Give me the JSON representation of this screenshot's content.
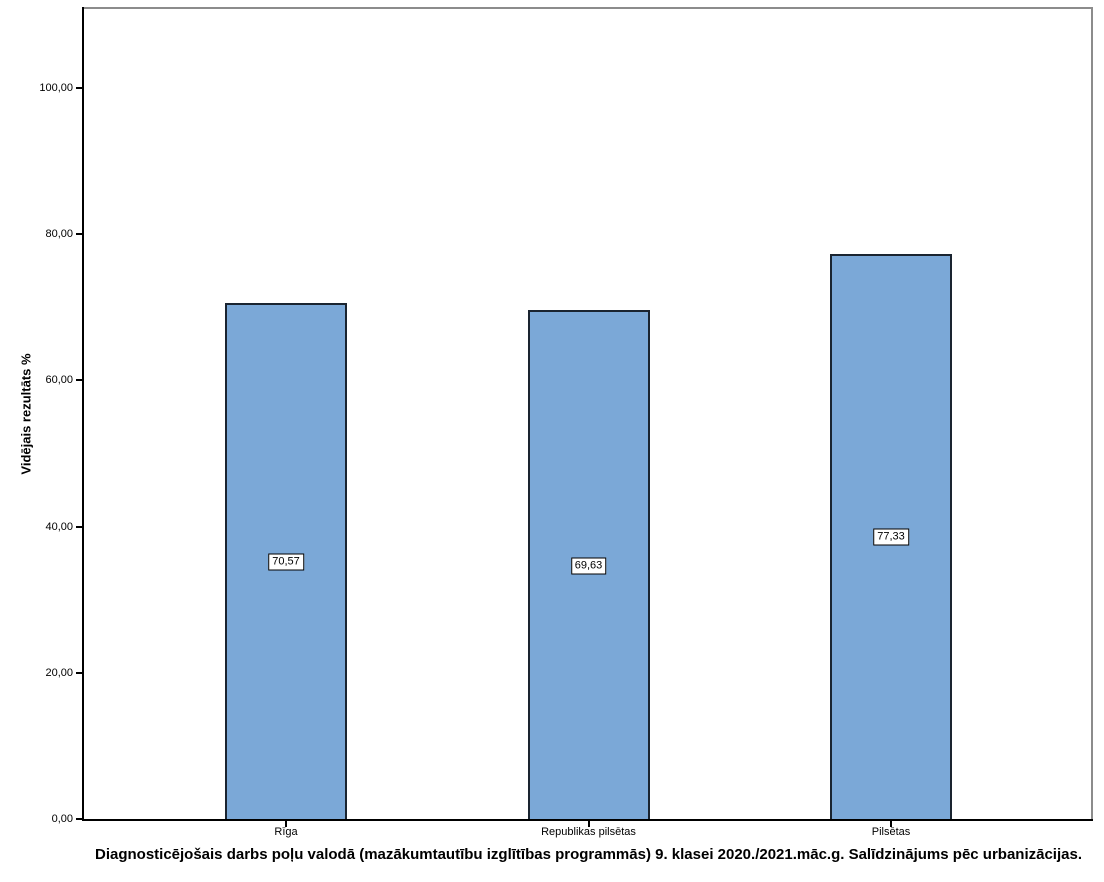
{
  "chart_data": {
    "type": "bar",
    "title": "Diagnosticējošais darbs poļu valodā (mazākumtautību izglītības programmās) 9. klasei 2020./2021.māc.g. Salīdzinājums pēc urbanizācijas.",
    "ylabel": "Vidējais rezultāts %",
    "xlabel": "",
    "categories": [
      "Rīga",
      "Republikas pilsētas",
      "Pilsētas"
    ],
    "values": [
      70.57,
      69.63,
      77.33
    ],
    "value_labels": [
      "70,57",
      "69,63",
      "77,33"
    ],
    "y_ticks": [
      {
        "value": 0,
        "label": "0,00"
      },
      {
        "value": 20,
        "label": "20,00"
      },
      {
        "value": 40,
        "label": "40,00"
      },
      {
        "value": 60,
        "label": "60,00"
      },
      {
        "value": 80,
        "label": "80,00"
      },
      {
        "value": 100,
        "label": "100,00"
      }
    ],
    "ylim": [
      0,
      110.9
    ],
    "grid": false,
    "legend": "none",
    "colors": {
      "bar_fill": "#7BA8D7",
      "bar_border": "#1a2430",
      "axis": "#000000",
      "frame": "#8c8c8c",
      "label_box_bg": "#ffffff",
      "background": "#ffffff"
    }
  }
}
